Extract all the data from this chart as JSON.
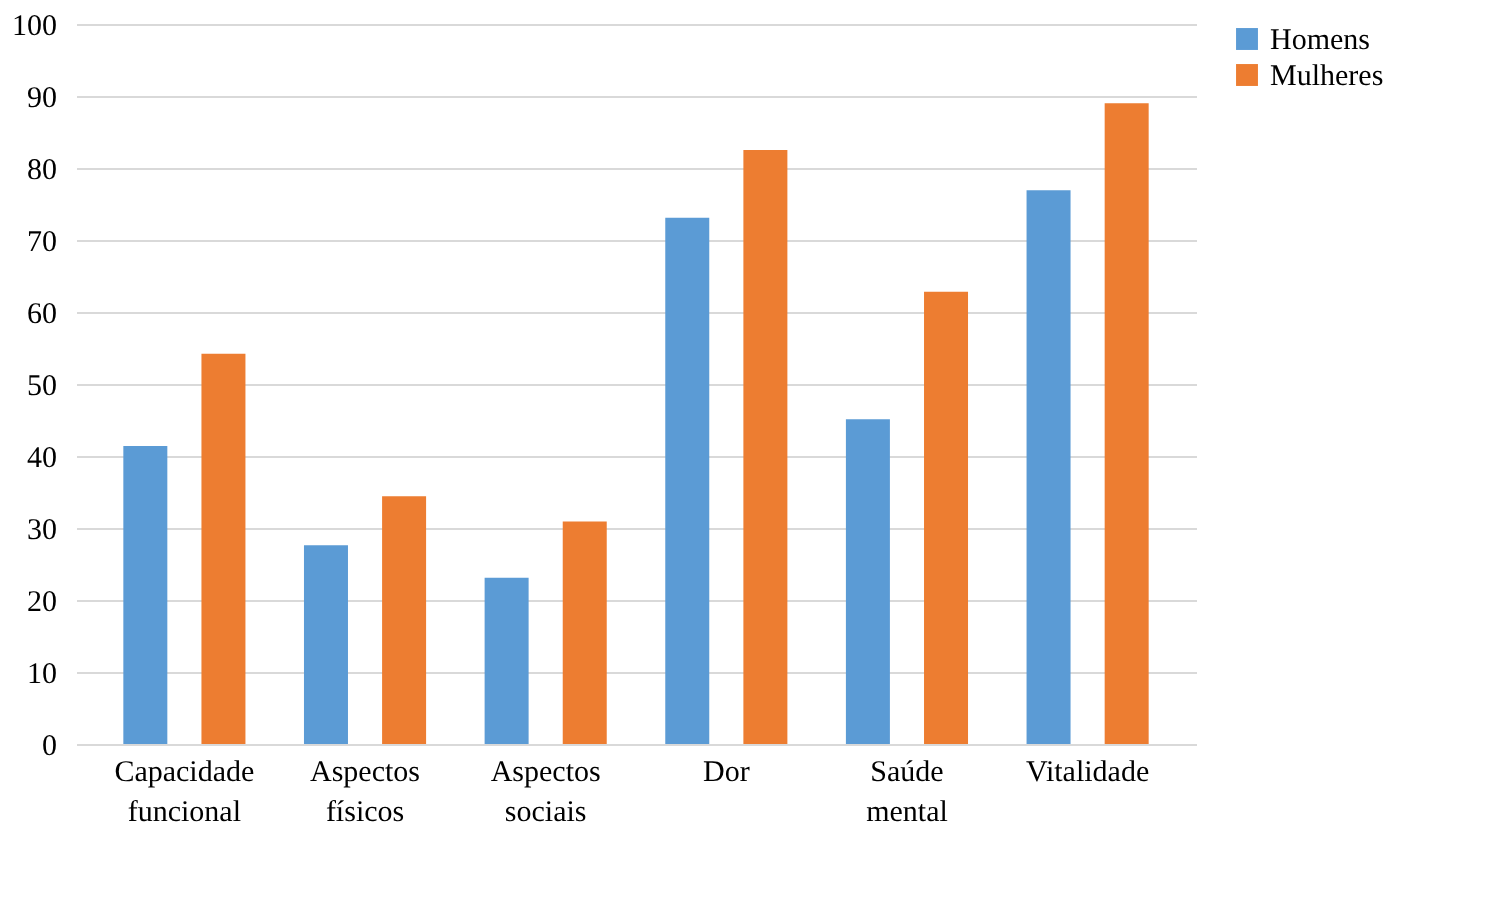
{
  "chart_data": {
    "type": "bar",
    "categories": [
      "Capacidade funcional",
      "Aspectos físicos",
      "Aspectos sociais",
      "Dor",
      "Saúde mental",
      "Vitalidade"
    ],
    "series": [
      {
        "name": "Homens",
        "color": "#5b9bd5",
        "values": [
          41.4,
          27.6,
          23.1,
          73.1,
          45.1,
          76.9
        ]
      },
      {
        "name": "Mulheres",
        "color": "#ed7d31",
        "values": [
          54.2,
          34.4,
          30.9,
          82.5,
          62.8,
          89.0
        ]
      }
    ],
    "ylim": [
      0,
      100
    ],
    "yticks": [
      0,
      10,
      20,
      30,
      40,
      50,
      60,
      70,
      80,
      90,
      100
    ],
    "grid": "y",
    "legend": "right"
  }
}
